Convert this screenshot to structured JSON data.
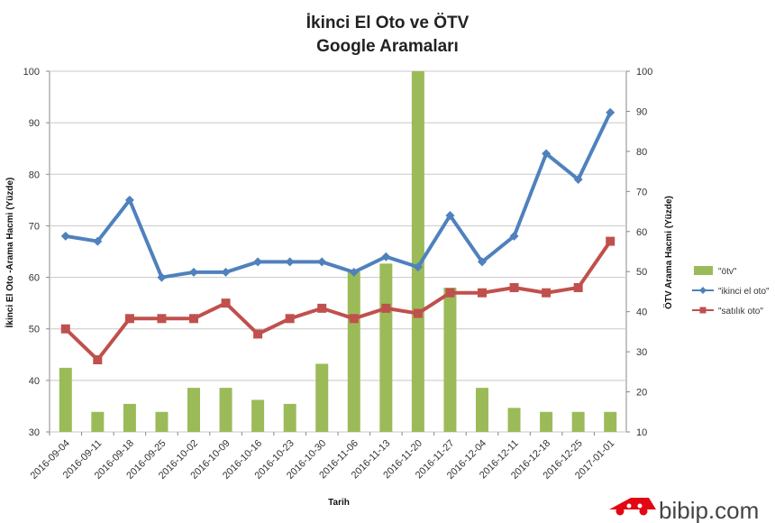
{
  "chart_data": {
    "type": "bar-line-combo",
    "title": [
      "İkinci El Oto ve ÖTV",
      "Google Aramaları"
    ],
    "xlabel": "Tarih",
    "ylabel_left": "İkinci El Oto -Arama Hacmi (Yüzde)",
    "ylabel_right": "ÖTV Arama Hacmi (Yüzde)",
    "ylim_left": [
      30,
      100
    ],
    "ylim_right": [
      10,
      100
    ],
    "yticks_left": [
      30,
      40,
      50,
      60,
      70,
      80,
      90,
      100
    ],
    "yticks_right": [
      10,
      20,
      30,
      40,
      50,
      60,
      70,
      80,
      90,
      100
    ],
    "categories": [
      "2016-09-04",
      "2016-09-11",
      "2016-09-18",
      "2016-09-25",
      "2016-10-02",
      "2016-10-09",
      "2016-10-16",
      "2016-10-23",
      "2016-10-30",
      "2016-11-06",
      "2016-11-13",
      "2016-11-20",
      "2016-11-27",
      "2016-12-04",
      "2016-12-11",
      "2016-12-18",
      "2016-12-25",
      "2017-01-01"
    ],
    "series": [
      {
        "name": "\"ötv\"",
        "kind": "bar",
        "axis": "right",
        "color": "#9bbb59",
        "values": [
          26,
          15,
          17,
          15,
          21,
          21,
          18,
          17,
          27,
          50,
          52,
          100,
          46,
          21,
          16,
          15,
          15,
          15
        ]
      },
      {
        "name": "\"ikinci el oto\"",
        "kind": "line",
        "axis": "left",
        "color": "#4f81bd",
        "marker": "diamond",
        "values": [
          68,
          67,
          75,
          60,
          61,
          61,
          63,
          63,
          63,
          61,
          64,
          62,
          72,
          63,
          68,
          84,
          79,
          92
        ]
      },
      {
        "name": "\"satılık oto\"",
        "kind": "line",
        "axis": "left",
        "color": "#c0504d",
        "marker": "square",
        "values": [
          50,
          44,
          52,
          52,
          52,
          55,
          49,
          52,
          54,
          52,
          54,
          53,
          57,
          57,
          58,
          57,
          58,
          67
        ]
      }
    ],
    "legend_position": "right"
  },
  "watermark": {
    "text": "bibip.com",
    "brand_color": "#e30613"
  }
}
